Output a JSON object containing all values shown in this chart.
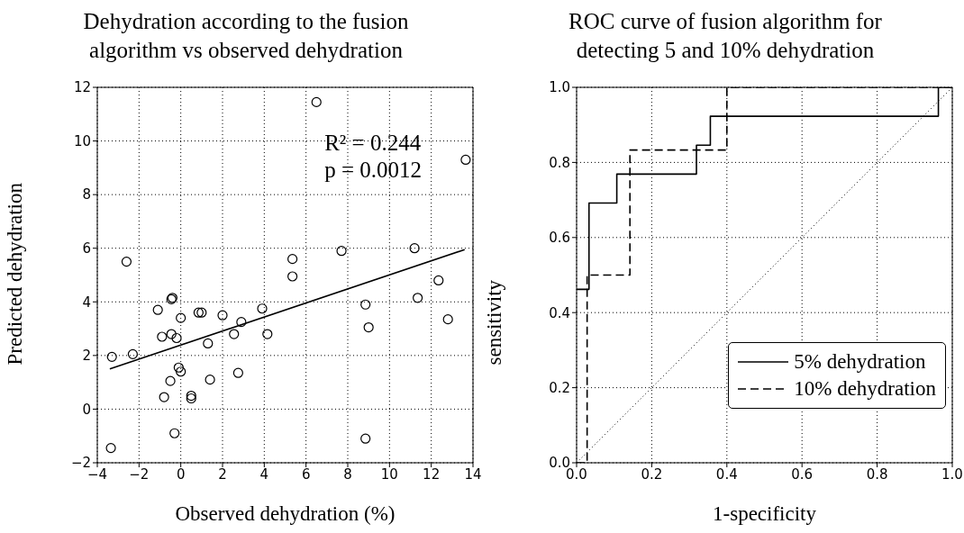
{
  "chart_data": [
    {
      "type": "scatter",
      "title": "Dehydration according to the fusion algorithm vs observed dehydration",
      "xlabel": "Observed dehydration (%)",
      "ylabel": "Predicted dehydration",
      "annotations": [
        "R² = 0.244",
        "p = 0.0012"
      ],
      "xlim": [
        -4,
        14
      ],
      "ylim": [
        -2,
        12
      ],
      "xticks": [
        -4,
        -2,
        0,
        2,
        4,
        6,
        8,
        10,
        12,
        14
      ],
      "yticks": [
        -2,
        0,
        2,
        4,
        6,
        8,
        10,
        12
      ],
      "grid": true,
      "series": [
        {
          "marker": "circle",
          "color": "#000000",
          "x": [
            -3.3,
            -3.35,
            -2.6,
            -2.3,
            -1.1,
            -0.8,
            -0.9,
            -0.45,
            -0.4,
            -0.45,
            -0.5,
            -0.3,
            -0.2,
            -0.1,
            0,
            0,
            0.5,
            0.5,
            0.85,
            1.0,
            1.3,
            1.4,
            2.0,
            2.55,
            2.75,
            2.9,
            3.9,
            4.15,
            5.35,
            5.35,
            6.5,
            7.7,
            8.85,
            9.0,
            8.85,
            11.2,
            11.35,
            12.35,
            12.8,
            13.65
          ],
          "values": [
            1.95,
            -1.45,
            5.5,
            2.05,
            3.7,
            0.45,
            2.7,
            4.1,
            4.15,
            2.8,
            1.05,
            -0.9,
            2.65,
            1.55,
            1.4,
            3.4,
            0.4,
            0.5,
            3.6,
            3.6,
            2.45,
            1.1,
            3.5,
            2.8,
            1.35,
            3.25,
            3.75,
            2.8,
            5.6,
            4.95,
            11.45,
            5.9,
            3.9,
            3.05,
            -1.1,
            6.0,
            4.15,
            4.8,
            3.35,
            9.3
          ]
        },
        {
          "type": "line",
          "color": "#000000",
          "x": [
            -3.4,
            13.6
          ],
          "values": [
            1.5,
            5.95
          ]
        }
      ]
    },
    {
      "type": "step",
      "title": "ROC curve of fusion algorithm for detecting 5 and 10% dehydration",
      "xlabel": "1-specificity",
      "ylabel": "sensitivity",
      "xlim": [
        0,
        1
      ],
      "ylim": [
        0,
        1
      ],
      "xticks": [
        {
          "value": 0,
          "label": "0.0"
        },
        0.2,
        0.4,
        0.6,
        0.8,
        {
          "value": 1,
          "label": "1.0"
        }
      ],
      "yticks": [
        {
          "value": 0,
          "label": "0.0"
        },
        0.2,
        0.4,
        0.6,
        0.8,
        {
          "value": 1,
          "label": "1.0"
        }
      ],
      "grid": true,
      "legend": "bottom right",
      "series": [
        {
          "name": "5% dehydration",
          "color": "#000000",
          "line_style": "solid",
          "x": [
            0,
            0.033,
            0.107,
            0.319,
            0.356,
            0.963,
            1.0
          ],
          "values": [
            0.462,
            0.692,
            0.769,
            0.846,
            0.923,
            1.0,
            1.0
          ]
        },
        {
          "name": "10% dehydration",
          "color": "#000000",
          "line_style": "dashed",
          "x": [
            0,
            0.028,
            0.142,
            0.4,
            1.0
          ],
          "values": [
            0,
            0.5,
            0.833,
            1.0,
            1.0
          ]
        },
        {
          "type": "line",
          "color": "#000000",
          "line_style": "dotted",
          "x": [
            0,
            1
          ],
          "values": [
            0,
            1
          ]
        }
      ]
    }
  ]
}
